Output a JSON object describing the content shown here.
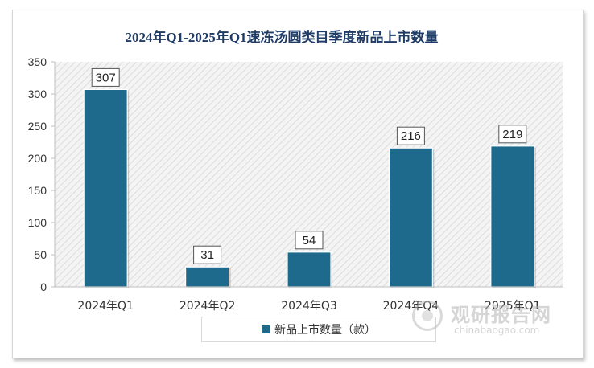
{
  "chart_data": {
    "type": "bar",
    "title": "2024年Q1-2025年Q1速冻汤圆类目季度新品上市数量",
    "categories": [
      "2024年Q1",
      "2024年Q2",
      "2024年Q3",
      "2024年Q4",
      "2025年Q1"
    ],
    "series": [
      {
        "name": "新品上市数量（款）",
        "values": [
          307,
          31,
          54,
          216,
          219
        ]
      }
    ],
    "ylim": [
      0,
      350
    ],
    "yticks": [
      0,
      50,
      100,
      150,
      200,
      250,
      300,
      350
    ],
    "xlabel": "",
    "ylabel": "",
    "legend_position": "bottom",
    "bar_color": "#1e6a8d"
  },
  "watermark": {
    "name_cn": "观研报告网",
    "url": "chinabaogao.com"
  }
}
